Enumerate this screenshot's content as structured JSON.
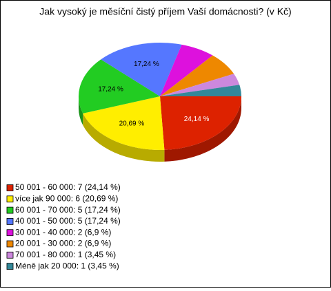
{
  "chart_data": {
    "type": "pie3d",
    "title": "Jak vysoký je měsíční čistý příjem Vaší domácnosti? (v Kč)",
    "categories": [
      "50 001 - 60 000: 7 (24,14 %)",
      "více jak 90 000: 6 (20,69 %)",
      "60 001 - 70 000: 5 (17,24 %)",
      "40 001 - 50 000: 5 (17,24 %)",
      "30 001 - 40 000: 2 (6,9 %)",
      "20 001 - 30 000: 2 (6,9 %)",
      "70 001 - 80 000: 1 (3,45 %)",
      "Méně jak 20 000: 1 (3,45 %)"
    ],
    "values": [
      24.14,
      20.69,
      17.24,
      17.24,
      6.9,
      6.9,
      3.45,
      3.45
    ],
    "value_labels": [
      "24,14 %",
      "20,69 %",
      "17,24 %",
      "17,24 %",
      null,
      null,
      null,
      null
    ],
    "colors": [
      "#dd2200",
      "#ffee00",
      "#22cc22",
      "#5577ff",
      "#dd11dd",
      "#ee8800",
      "#cc88dd",
      "#338899"
    ],
    "legend": "bottom-left"
  }
}
